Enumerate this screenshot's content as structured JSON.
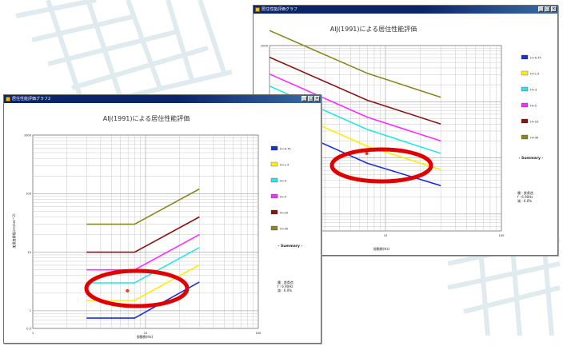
{
  "colors": {
    "series": [
      "#1f2fd6",
      "#ffee00",
      "#22e8e8",
      "#ff2bff",
      "#8b1414",
      "#8c8620"
    ],
    "highlight_ellipse": "#e10000",
    "marker": "#ff3300"
  },
  "windows": [
    {
      "title": "居住性能評価グラフ",
      "chart_title": "AIJ(1991)による居住性能評価",
      "legend_labels": [
        "H=0.75",
        "H=1.5",
        "H=3",
        "H=5",
        "H=10",
        "H=30"
      ],
      "summary_label": "- Summary -",
      "summary_lines": [
        "種 : 鉄骨造",
        "f : 6.90Hz",
        "減 : 6.0%"
      ],
      "y_ticks": [
        "1000"
      ],
      "x_ticks": [
        "1",
        "10",
        "100"
      ],
      "xlabel": "振動数(Hz)",
      "ylabel": ""
    },
    {
      "title": "居住性能評価グラフ2",
      "chart_title": "AIJ(1991)による居住性能評価",
      "legend_labels": [
        "H=0.75",
        "H=1.5",
        "H=3",
        "H=5",
        "H=10",
        "H=30"
      ],
      "summary_label": "- Summary -",
      "summary_lines": [
        "種 : 鉄骨造",
        "f : 6.90Hz",
        "減 : 6.0%"
      ],
      "y_ticks": [
        "1000",
        "100",
        "10",
        "1",
        "0.5"
      ],
      "x_ticks": [
        "1",
        "10",
        "100"
      ],
      "xlabel": "振動数(Hz)",
      "ylabel": "加速度振幅(cm/sec^2)"
    }
  ],
  "chart_data": [
    {
      "type": "line",
      "title": "AIJ(1991)による居住性能評価",
      "xlabel": "振動数(Hz)",
      "x_scale": "log",
      "y_scale": "log",
      "xlim": [
        1,
        100
      ],
      "ylim": [
        0.5,
        1000
      ],
      "series": [
        {
          "name": "H=0.75",
          "points": [
            [
              1,
              48
            ],
            [
              7,
              8
            ],
            [
              30,
              3.2
            ]
          ]
        },
        {
          "name": "H=1.5",
          "points": [
            [
              1,
              95
            ],
            [
              7,
              16
            ],
            [
              30,
              6.2
            ]
          ]
        },
        {
          "name": "H=3",
          "points": [
            [
              1,
              190
            ],
            [
              7,
              32
            ],
            [
              30,
              12
            ]
          ]
        },
        {
          "name": "H=5",
          "points": [
            [
              1,
              310
            ],
            [
              7,
              53
            ],
            [
              30,
              20
            ]
          ]
        },
        {
          "name": "H=10",
          "points": [
            [
              1,
              620
            ],
            [
              7,
              106
            ],
            [
              30,
              40
            ]
          ]
        },
        {
          "name": "H=30",
          "points": [
            [
              1,
              1850
            ],
            [
              7,
              320
            ],
            [
              30,
              120
            ]
          ]
        }
      ],
      "marker": [
        6.9,
        12
      ],
      "legend": "right",
      "grid": true
    },
    {
      "type": "line",
      "title": "AIJ(1991)による居住性能評価",
      "xlabel": "振動数(Hz)",
      "ylabel": "加速度振幅(cm/sec^2)",
      "x_scale": "log",
      "y_scale": "log",
      "xlim": [
        1,
        100
      ],
      "ylim": [
        0.5,
        1000
      ],
      "series": [
        {
          "name": "H=0.75",
          "points": [
            [
              3,
              0.75
            ],
            [
              8,
              0.75
            ],
            [
              30,
              3.1
            ]
          ]
        },
        {
          "name": "H=1.5",
          "points": [
            [
              3,
              1.5
            ],
            [
              8,
              1.5
            ],
            [
              30,
              6.1
            ]
          ]
        },
        {
          "name": "H=3",
          "points": [
            [
              3,
              3
            ],
            [
              8,
              3
            ],
            [
              30,
              12
            ]
          ]
        },
        {
          "name": "H=5",
          "points": [
            [
              3,
              5
            ],
            [
              8,
              5
            ],
            [
              30,
              20
            ]
          ]
        },
        {
          "name": "H=10",
          "points": [
            [
              3,
              10
            ],
            [
              8,
              10
            ],
            [
              30,
              40
            ]
          ]
        },
        {
          "name": "H=30",
          "points": [
            [
              3,
              30
            ],
            [
              8,
              30
            ],
            [
              30,
              120
            ]
          ]
        }
      ],
      "marker": [
        6.9,
        2.2
      ],
      "legend": "right",
      "grid": true
    }
  ]
}
